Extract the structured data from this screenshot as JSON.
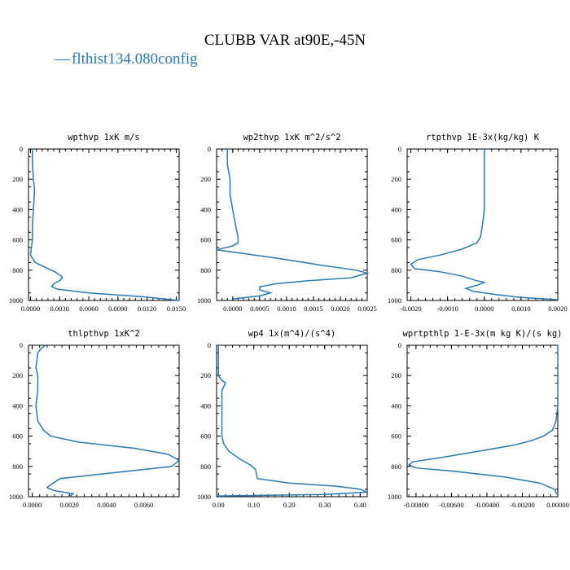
{
  "figure": {
    "title": "CLUBB VAR at90E,-45N",
    "legend_entry": "flthist134.080config",
    "legend_glyph": "—",
    "line_color": "#2a7ab0"
  },
  "chart_data": [
    {
      "type": "line",
      "title": "wpthvp   1xK  m/s",
      "xlim": [
        -0.0002,
        0.0153
      ],
      "ylim": [
        1000,
        0
      ],
      "xticks": [
        "0.0000",
        "0.0030",
        "0.0060",
        "0.0090",
        "0.0120",
        "0.0150"
      ],
      "xtick_values": [
        0,
        0.003,
        0.006,
        0.009,
        0.012,
        0.015
      ],
      "yticks": [
        "0",
        "200",
        "400",
        "600",
        "800",
        "1000"
      ],
      "series": [
        {
          "x": [
            0.0002,
            0.0002,
            0.0003,
            0.0004,
            0.0004,
            0.0003,
            0.0002,
            0.0002,
            0.0,
            0.0005,
            0.0015,
            0.0025,
            0.0031,
            0.0033,
            0.003,
            0.0024,
            0.0022,
            0.0028,
            0.006,
            0.0115,
            0.0153
          ],
          "y": [
            0,
            100,
            200,
            250,
            300,
            400,
            500,
            600,
            700,
            750,
            780,
            810,
            835,
            850,
            870,
            890,
            910,
            925,
            950,
            975,
            1000
          ]
        }
      ]
    },
    {
      "type": "line",
      "title": "wp2thvp   1xK  m^2/s^2",
      "xlim": [
        -0.0003,
        0.0025
      ],
      "ylim": [
        1000,
        0
      ],
      "xticks": [
        "0.0000",
        "0.0005",
        "0.0010",
        "0.0015",
        "0.0020",
        "0.0025"
      ],
      "xtick_values": [
        0,
        0.0005,
        0.001,
        0.0015,
        0.002,
        0.0025
      ],
      "yticks": [
        "0",
        "200",
        "400",
        "600",
        "800",
        "1000"
      ],
      "series": [
        {
          "x": [
            -0.0001,
            -0.0001,
            -5e-05,
            -5e-05,
            0.0,
            5e-05,
            0.0001,
            0.0001,
            0.0,
            -0.0003,
            0.0008,
            0.0017,
            0.0023,
            0.0025,
            0.0022,
            0.0014,
            0.0008,
            0.0005,
            0.0005,
            0.0007,
            0.0005,
            0.0
          ],
          "y": [
            0,
            100,
            200,
            300,
            400,
            500,
            580,
            620,
            640,
            665,
            720,
            770,
            800,
            820,
            850,
            870,
            890,
            910,
            930,
            950,
            970,
            990
          ]
        }
      ]
    },
    {
      "type": "line",
      "title": "rtpthvp   1E-3x(kg/kg) K",
      "xlim": [
        -0.0021,
        0.002
      ],
      "ylim": [
        1000,
        0
      ],
      "xticks": [
        "-0.0020",
        "-0.0010",
        "0.0000",
        "0.0010",
        "0.0020"
      ],
      "xtick_values": [
        -0.002,
        -0.001,
        0,
        0.001,
        0.002
      ],
      "yticks": [
        "0",
        "200",
        "400",
        "600",
        "800",
        "1000"
      ],
      "series": [
        {
          "x": [
            0.0,
            0.0,
            0.0,
            -5e-05,
            -0.0001,
            -0.0002,
            -0.0006,
            -0.0012,
            -0.0018,
            -0.002,
            -0.0019,
            -0.0012,
            -0.0006,
            -0.0002,
            0.0,
            -0.0002,
            -0.0005,
            -0.0003,
            0.0003,
            0.001,
            0.002
          ],
          "y": [
            0,
            200,
            400,
            500,
            580,
            620,
            660,
            700,
            730,
            760,
            790,
            810,
            840,
            870,
            880,
            900,
            920,
            940,
            960,
            980,
            995
          ]
        }
      ]
    },
    {
      "type": "line",
      "title": "thlpthvp   1xK^2",
      "xlim": [
        -0.0002,
        0.0079
      ],
      "ylim": [
        1000,
        0
      ],
      "xticks": [
        "0.0000",
        "0.0020",
        "0.0040",
        "0.0060"
      ],
      "xtick_values": [
        0,
        0.002,
        0.004,
        0.006
      ],
      "yticks": [
        "0",
        "200",
        "400",
        "600",
        "800",
        "1000"
      ],
      "series": [
        {
          "x": [
            0.0007,
            0.0005,
            0.0003,
            0.0002,
            0.0003,
            0.0003,
            0.0002,
            0.0003,
            0.0006,
            0.001,
            0.0025,
            0.0055,
            0.0073,
            0.0079,
            0.0075,
            0.0045,
            0.0015,
            0.001,
            0.0008,
            0.0012,
            0.0022,
            0.002
          ],
          "y": [
            0,
            20,
            50,
            150,
            200,
            300,
            400,
            500,
            560,
            600,
            640,
            680,
            720,
            760,
            800,
            840,
            880,
            920,
            940,
            960,
            980,
            1000
          ]
        }
      ]
    },
    {
      "type": "line",
      "title": "wp4   1x(m^4)/(s^4)",
      "xlim": [
        -0.005,
        0.42
      ],
      "ylim": [
        1000,
        0
      ],
      "xticks": [
        "0.00",
        "0.10",
        "0.20",
        "0.30",
        "0.40"
      ],
      "xtick_values": [
        0,
        0.1,
        0.2,
        0.3,
        0.4
      ],
      "yticks": [
        "0",
        "200",
        "400",
        "600",
        "800",
        "1000"
      ],
      "series": [
        {
          "x": [
            0.0,
            0.0,
            0.0,
            0.01,
            0.02,
            0.01,
            0.01,
            0.01,
            0.01,
            0.015,
            0.03,
            0.06,
            0.09,
            0.105,
            0.11,
            0.2,
            0.33,
            0.4,
            0.42,
            0.3,
            0.0
          ],
          "y": [
            0,
            100,
            200,
            230,
            250,
            300,
            400,
            500,
            600,
            650,
            700,
            750,
            790,
            820,
            880,
            910,
            930,
            950,
            970,
            985,
            995
          ]
        }
      ]
    },
    {
      "type": "line",
      "title": "wprtpthlp   1-E-3x(m kg K)/(s kg)",
      "xlim": [
        -0.0085,
        0.0
      ],
      "ylim": [
        1000,
        0
      ],
      "xticks": [
        "-0.00800",
        "-0.00600",
        "-0.00400",
        "-0.00200",
        "0.00000"
      ],
      "xtick_values": [
        -0.008,
        -0.006,
        -0.004,
        -0.002,
        0
      ],
      "yticks": [
        "0",
        "200",
        "400",
        "600",
        "800",
        "1000"
      ],
      "series": [
        {
          "x": [
            0.0,
            0.0,
            0.0,
            -0.0001,
            -0.0003,
            -0.0008,
            -0.0015,
            -0.0025,
            -0.0045,
            -0.0065,
            -0.0082,
            -0.0084,
            -0.008,
            -0.006,
            -0.003,
            -0.001,
            -0.0002,
            0.0
          ],
          "y": [
            0,
            200,
            400,
            500,
            560,
            600,
            630,
            660,
            700,
            740,
            770,
            790,
            810,
            830,
            870,
            910,
            950,
            990
          ]
        }
      ]
    }
  ]
}
